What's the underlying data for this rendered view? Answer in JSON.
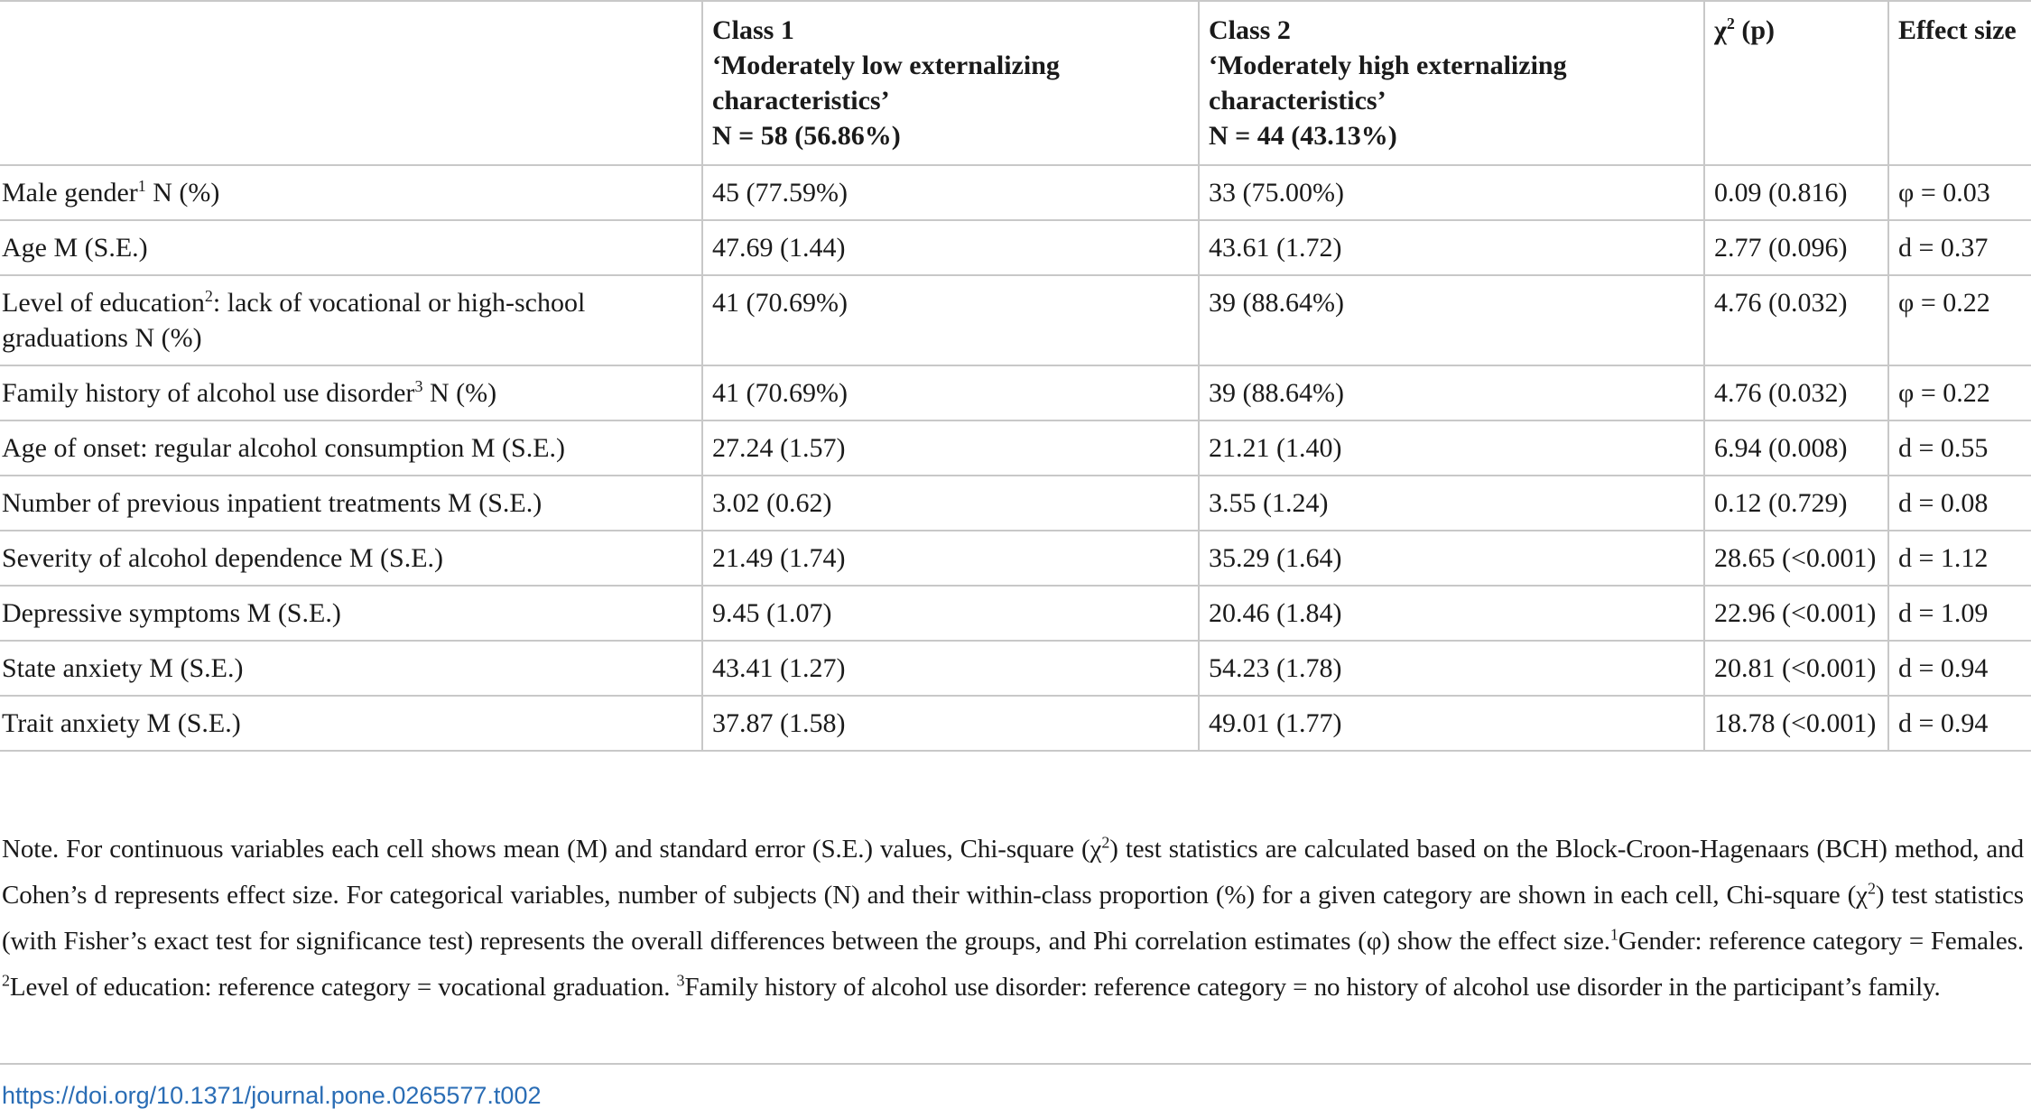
{
  "table": {
    "headers": {
      "variable": "",
      "class1": {
        "title": "Class 1",
        "label": "‘Moderately low externalizing characteristics’",
        "n": "N = 58 (56.86%)"
      },
      "class2": {
        "title": "Class 2",
        "label": "‘Moderately high externalizing characteristics’",
        "n": "N = 44 (43.13%)"
      },
      "chi_symbol": "χ",
      "chi_sup": "2",
      "chi_rest": " (p)",
      "effect": "Effect size"
    },
    "rows": [
      {
        "label_pre": "Male gender",
        "sup": "1",
        "label_post": " N (%)",
        "class1": "45 (77.59%)",
        "class2": "33 (75.00%)",
        "chi": "0.09 (0.816)",
        "effect": "φ = 0.03"
      },
      {
        "label_pre": "Age M (S.E.)",
        "sup": "",
        "label_post": "",
        "class1": "47.69 (1.44)",
        "class2": "43.61 (1.72)",
        "chi": "2.77 (0.096)",
        "effect": "d = 0.37"
      },
      {
        "label_pre": "Level of education",
        "sup": "2",
        "label_post": ": lack of vocational or high-school graduations N (%)",
        "class1": "41 (70.69%)",
        "class2": "39 (88.64%)",
        "chi": "4.76 (0.032)",
        "effect": "φ = 0.22"
      },
      {
        "label_pre": "Family history of alcohol use disorder",
        "sup": "3",
        "label_post": " N (%)",
        "class1": "41 (70.69%)",
        "class2": "39 (88.64%)",
        "chi": "4.76 (0.032)",
        "effect": "φ = 0.22"
      },
      {
        "label_pre": "Age of onset: regular alcohol consumption M (S.E.)",
        "sup": "",
        "label_post": "",
        "class1": "27.24 (1.57)",
        "class2": "21.21 (1.40)",
        "chi": "6.94 (0.008)",
        "effect": "d = 0.55"
      },
      {
        "label_pre": "Number of previous inpatient treatments M (S.E.)",
        "sup": "",
        "label_post": "",
        "class1": "3.02 (0.62)",
        "class2": "3.55 (1.24)",
        "chi": "0.12 (0.729)",
        "effect": "d = 0.08"
      },
      {
        "label_pre": "Severity of alcohol dependence M (S.E.)",
        "sup": "",
        "label_post": "",
        "class1": "21.49 (1.74)",
        "class2": "35.29 (1.64)",
        "chi": "28.65 (<0.001)",
        "effect": "d = 1.12"
      },
      {
        "label_pre": "Depressive symptoms M (S.E.)",
        "sup": "",
        "label_post": "",
        "class1": "9.45 (1.07)",
        "class2": "20.46 (1.84)",
        "chi": "22.96 (<0.001)",
        "effect": "d = 1.09"
      },
      {
        "label_pre": "State anxiety M (S.E.)",
        "sup": "",
        "label_post": "",
        "class1": "43.41 (1.27)",
        "class2": "54.23 (1.78)",
        "chi": "20.81 (<0.001)",
        "effect": "d = 0.94"
      },
      {
        "label_pre": "Trait anxiety M (S.E.)",
        "sup": "",
        "label_post": "",
        "class1": "37.87 (1.58)",
        "class2": "49.01 (1.77)",
        "chi": "18.78 (<0.001)",
        "effect": "d = 0.94"
      }
    ]
  },
  "note": {
    "p1": "Note. For continuous variables each cell shows mean (M) and standard error (S.E.) values, Chi-square (χ",
    "s1": "2",
    "p2": ") test statistics are calculated based on the Block-Croon-Hagenaars (BCH) method, and Cohen’s d represents effect size. For categorical variables, number of subjects (N) and their within-class proportion (%) for a given category are shown in each cell, Chi-square (χ",
    "s2": "2",
    "p3": ") test statistics (with Fisher’s exact test for significance test) represents the overall differences between the groups, and Phi correlation estimates (φ) show the effect size.",
    "s3": "1",
    "p4": "Gender: reference category = Females. ",
    "s4": "2",
    "p5": "Level of education: reference category = vocational graduation. ",
    "s5": "3",
    "p6": "Family history of alcohol use disorder: reference category = no history of alcohol use disorder in the participant’s family."
  },
  "doi": {
    "text": "https://doi.org/10.1371/journal.pone.0265577.t002",
    "link_color": "#2a6db5"
  }
}
